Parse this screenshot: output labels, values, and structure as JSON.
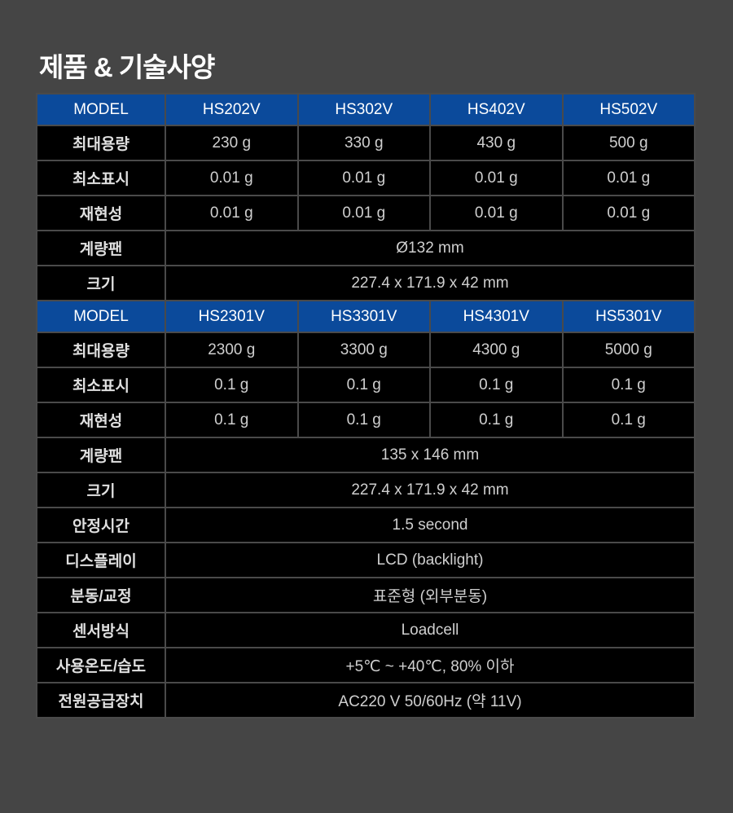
{
  "title": "제품 & 기술사양",
  "colors": {
    "background": "#454545",
    "header": "#0b4a9b",
    "cell": "#000000",
    "border": "#4a4a4a"
  },
  "group1": {
    "header": [
      "MODEL",
      "HS202V",
      "HS302V",
      "HS402V",
      "HS502V"
    ],
    "rows": [
      {
        "label": "최대용량",
        "values": [
          "230 g",
          "330 g",
          "430 g",
          "500 g"
        ]
      },
      {
        "label": "최소표시",
        "values": [
          "0.01 g",
          "0.01 g",
          "0.01 g",
          "0.01 g"
        ]
      },
      {
        "label": "재현성",
        "values": [
          "0.01 g",
          "0.01 g",
          "0.01 g",
          "0.01 g"
        ]
      },
      {
        "label": "계량팬",
        "value": "Ø132 mm"
      },
      {
        "label": "크기",
        "value": "227.4 x 171.9 x 42 mm"
      }
    ]
  },
  "group2": {
    "header": [
      "MODEL",
      "HS2301V",
      "HS3301V",
      "HS4301V",
      "HS5301V"
    ],
    "rows": [
      {
        "label": "최대용량",
        "values": [
          "2300 g",
          "3300 g",
          "4300 g",
          "5000 g"
        ]
      },
      {
        "label": "최소표시",
        "values": [
          "0.1 g",
          "0.1 g",
          "0.1 g",
          "0.1 g"
        ]
      },
      {
        "label": "재현성",
        "values": [
          "0.1 g",
          "0.1 g",
          "0.1 g",
          "0.1 g"
        ]
      },
      {
        "label": "계량팬",
        "value": "135 x 146 mm"
      },
      {
        "label": "크기",
        "value": "227.4 x 171.9 x 42 mm"
      },
      {
        "label": "안정시간",
        "value": "1.5 second"
      },
      {
        "label": "디스플레이",
        "value": "LCD (backlight)"
      },
      {
        "label": "분동/교정",
        "value": "표준형 (외부분동)"
      },
      {
        "label": "센서방식",
        "value": "Loadcell"
      },
      {
        "label": "사용온도/습도",
        "value": "+5℃ ~ +40℃, 80% 이하"
      },
      {
        "label": "전원공급장치",
        "value": "AC220 V 50/60Hz (약 11V)"
      }
    ]
  }
}
